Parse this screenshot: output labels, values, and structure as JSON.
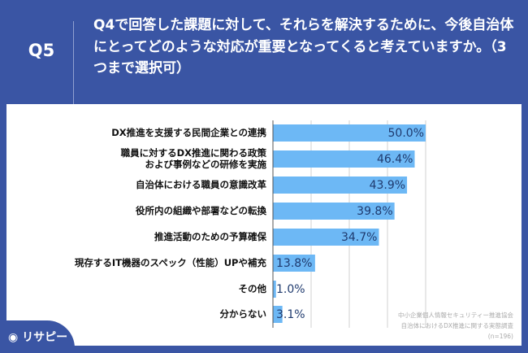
{
  "header": {
    "question_no": "Q5",
    "question": "Q4で回答した課題に対して、それらを解決するために、今後自治体にとってどのような対応が重要となってくると考えていますか。（3つまで選択可）"
  },
  "colors": {
    "background": "#3a55a4",
    "bar": "#6db8f5",
    "value_text": "#1f3a6e"
  },
  "chart_data": {
    "type": "bar",
    "orientation": "horizontal",
    "categories": [
      "DX推進を支援する民間企業との連携",
      "職員に対するDX推進に関わる政策\nおよび事例などの研修を実施",
      "自治体における職員の意識改革",
      "役所内の組織や部署などの転換",
      "推進活動のための予算確保",
      "現存するIT機器のスペック（性能）UPや補充",
      "その他",
      "分からない"
    ],
    "values": [
      50.0,
      46.4,
      43.9,
      39.8,
      34.7,
      13.8,
      1.0,
      3.1
    ],
    "value_labels": [
      "50.0%",
      "46.4%",
      "43.9%",
      "39.8%",
      "34.7%",
      "13.8%",
      "1.0%",
      "3.1%"
    ],
    "xlim": [
      0,
      50
    ],
    "grid": true,
    "unit": "%"
  },
  "source": {
    "line1": "中小企業個人情報セキュリティー推進協会",
    "line2": "自治体におけるDX推進に関する実態調査",
    "line3": "(n=196)"
  },
  "logo": "リサピー"
}
